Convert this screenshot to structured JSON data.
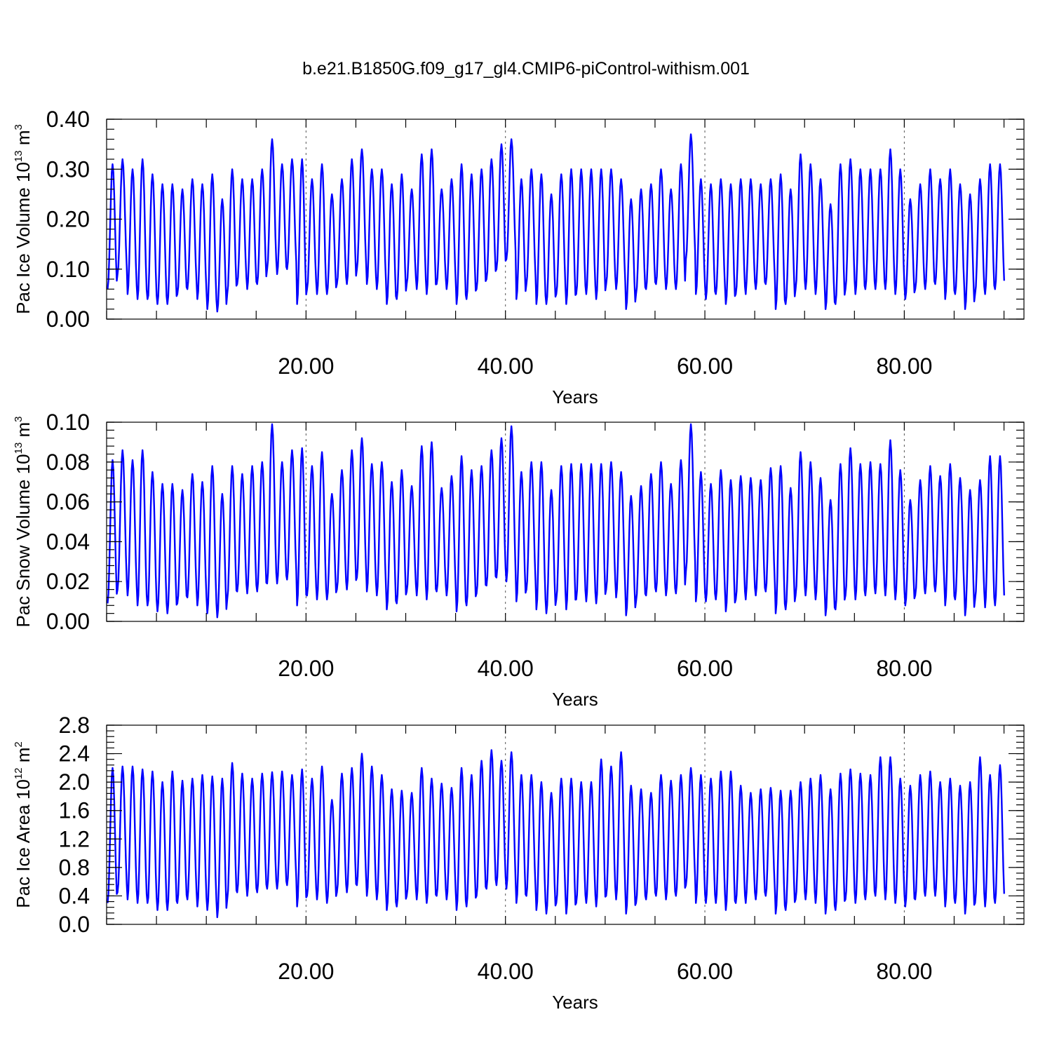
{
  "figure_title": "b.e21.B1850G.f09_g17_gl4.CMIP6-piControl-withism.001",
  "colors": {
    "series": "#0000ff",
    "axes": "#000000",
    "grid": "#555555",
    "background": "#ffffff"
  },
  "chart_data": [
    {
      "type": "line",
      "ylabel_base": "Pac Ice Volume 10",
      "ylabel_exp": "13",
      "ylabel_unit": " m",
      "ylabel_unit_exp": "3",
      "xlabel": "Years",
      "xlim": [
        0,
        92
      ],
      "ylim": [
        0.0,
        0.4
      ],
      "xticks": [
        20,
        40,
        60,
        80
      ],
      "xtick_labels": [
        "20.00",
        "40.00",
        "60.00",
        "80.00"
      ],
      "yticks": [
        0.0,
        0.1,
        0.2,
        0.3,
        0.4
      ],
      "ytick_labels": [
        "0.00",
        "0.10",
        "0.20",
        "0.30",
        "0.40"
      ],
      "grid": "vertical dashed at labeled x ticks",
      "series": [
        {
          "color": "#0000ff",
          "x_start": 0.1,
          "x_end": 90,
          "points_per_year": 12,
          "annual_max": [
            0.31,
            0.32,
            0.3,
            0.32,
            0.29,
            0.27,
            0.27,
            0.26,
            0.28,
            0.27,
            0.29,
            0.24,
            0.3,
            0.28,
            0.28,
            0.3,
            0.36,
            0.31,
            0.32,
            0.32,
            0.28,
            0.31,
            0.25,
            0.28,
            0.32,
            0.34,
            0.3,
            0.3,
            0.27,
            0.29,
            0.26,
            0.33,
            0.34,
            0.26,
            0.28,
            0.31,
            0.29,
            0.3,
            0.32,
            0.35,
            0.36,
            0.28,
            0.3,
            0.29,
            0.25,
            0.29,
            0.3,
            0.3,
            0.3,
            0.3,
            0.3,
            0.28,
            0.24,
            0.26,
            0.27,
            0.3,
            0.26,
            0.31,
            0.37,
            0.28,
            0.27,
            0.28,
            0.27,
            0.28,
            0.28,
            0.27,
            0.28,
            0.29,
            0.26,
            0.33,
            0.31,
            0.28,
            0.23,
            0.31,
            0.32,
            0.3,
            0.3,
            0.3,
            0.34,
            0.3,
            0.24,
            0.27,
            0.3,
            0.28,
            0.3,
            0.27,
            0.25,
            0.28,
            0.31,
            0.31
          ],
          "annual_min": [
            0.06,
            0.09,
            0.05,
            0.04,
            0.03,
            0.03,
            0.03,
            0.05,
            0.06,
            0.04,
            0.02,
            0.015,
            0.05,
            0.07,
            0.06,
            0.07,
            0.1,
            0.09,
            0.1,
            0.03,
            0.06,
            0.05,
            0.05,
            0.07,
            0.07,
            0.1,
            0.07,
            0.06,
            0.03,
            0.04,
            0.07,
            0.06,
            0.05,
            0.07,
            0.06,
            0.03,
            0.04,
            0.06,
            0.08,
            0.1,
            0.12,
            0.04,
            0.07,
            0.03,
            0.03,
            0.05,
            0.03,
            0.05,
            0.05,
            0.04,
            0.07,
            0.06,
            0.02,
            0.05,
            0.06,
            0.07,
            0.06,
            0.06,
            0.12,
            0.05,
            0.04,
            0.05,
            0.03,
            0.05,
            0.06,
            0.06,
            0.07,
            0.02,
            0.03,
            0.06,
            0.06,
            0.05,
            0.02,
            0.03,
            0.06,
            0.05,
            0.06,
            0.06,
            0.06,
            0.05,
            0.04,
            0.06,
            0.06,
            0.07,
            0.04,
            0.05,
            0.02,
            0.05,
            0.05,
            0.06
          ]
        }
      ]
    },
    {
      "type": "line",
      "ylabel_base": "Pac Snow Volume 10",
      "ylabel_exp": "13",
      "ylabel_unit": " m",
      "ylabel_unit_exp": "3",
      "xlabel": "Years",
      "xlim": [
        0,
        92
      ],
      "ylim": [
        0.0,
        0.1
      ],
      "xticks": [
        20,
        40,
        60,
        80
      ],
      "xtick_labels": [
        "20.00",
        "40.00",
        "60.00",
        "80.00"
      ],
      "yticks": [
        0.0,
        0.02,
        0.04,
        0.06,
        0.08,
        0.1
      ],
      "ytick_labels": [
        "0.00",
        "0.02",
        "0.04",
        "0.06",
        "0.08",
        "0.10"
      ],
      "grid": "vertical dashed at labeled x ticks",
      "series": [
        {
          "color": "#0000ff",
          "x_start": 0.1,
          "x_end": 90,
          "points_per_year": 12,
          "annual_max": [
            0.081,
            0.086,
            0.081,
            0.086,
            0.075,
            0.069,
            0.069,
            0.066,
            0.074,
            0.07,
            0.078,
            0.064,
            0.078,
            0.074,
            0.078,
            0.08,
            0.099,
            0.08,
            0.086,
            0.087,
            0.078,
            0.085,
            0.064,
            0.076,
            0.086,
            0.092,
            0.079,
            0.08,
            0.07,
            0.076,
            0.068,
            0.088,
            0.09,
            0.067,
            0.073,
            0.083,
            0.076,
            0.078,
            0.086,
            0.092,
            0.098,
            0.075,
            0.08,
            0.08,
            0.066,
            0.078,
            0.079,
            0.079,
            0.079,
            0.079,
            0.08,
            0.075,
            0.063,
            0.068,
            0.074,
            0.08,
            0.069,
            0.081,
            0.099,
            0.075,
            0.069,
            0.076,
            0.071,
            0.073,
            0.072,
            0.071,
            0.077,
            0.078,
            0.067,
            0.085,
            0.08,
            0.072,
            0.061,
            0.079,
            0.087,
            0.079,
            0.08,
            0.079,
            0.091,
            0.076,
            0.061,
            0.071,
            0.078,
            0.073,
            0.079,
            0.072,
            0.066,
            0.071,
            0.083,
            0.083
          ],
          "annual_min": [
            0.009,
            0.016,
            0.013,
            0.008,
            0.006,
            0.005,
            0.004,
            0.009,
            0.012,
            0.008,
            0.004,
            0.002,
            0.011,
            0.015,
            0.014,
            0.015,
            0.019,
            0.019,
            0.021,
            0.008,
            0.013,
            0.011,
            0.011,
            0.016,
            0.016,
            0.022,
            0.015,
            0.013,
            0.006,
            0.009,
            0.015,
            0.013,
            0.011,
            0.015,
            0.013,
            0.005,
            0.008,
            0.014,
            0.018,
            0.022,
            0.02,
            0.01,
            0.016,
            0.006,
            0.004,
            0.011,
            0.006,
            0.011,
            0.01,
            0.009,
            0.016,
            0.012,
            0.003,
            0.01,
            0.013,
            0.015,
            0.013,
            0.014,
            0.025,
            0.01,
            0.01,
            0.011,
            0.005,
            0.011,
            0.013,
            0.013,
            0.015,
            0.004,
            0.006,
            0.013,
            0.013,
            0.011,
            0.003,
            0.006,
            0.013,
            0.011,
            0.013,
            0.014,
            0.013,
            0.011,
            0.008,
            0.013,
            0.014,
            0.015,
            0.008,
            0.011,
            0.003,
            0.011,
            0.007,
            0.008
          ]
        }
      ]
    },
    {
      "type": "line",
      "ylabel_base": "Pac Ice Area 10",
      "ylabel_exp": "12",
      "ylabel_unit": " m",
      "ylabel_unit_exp": "2",
      "xlabel": "Years",
      "xlim": [
        0,
        92
      ],
      "ylim": [
        0.0,
        2.8
      ],
      "xticks": [
        20,
        40,
        60,
        80
      ],
      "xtick_labels": [
        "20.00",
        "40.00",
        "60.00",
        "80.00"
      ],
      "yticks": [
        0.0,
        0.4,
        0.8,
        1.2,
        1.6,
        2.0,
        2.4,
        2.8
      ],
      "ytick_labels": [
        "0.0",
        "0.4",
        "0.8",
        "1.2",
        "1.6",
        "2.0",
        "2.4",
        "2.8"
      ],
      "grid": "vertical dashed at labeled x ticks",
      "series": [
        {
          "color": "#0000ff",
          "x_start": 0.1,
          "x_end": 90,
          "points_per_year": 12,
          "annual_max": [
            2.2,
            2.22,
            2.22,
            2.18,
            2.15,
            2.0,
            2.15,
            2.02,
            2.05,
            2.1,
            2.08,
            2.05,
            2.27,
            2.12,
            2.05,
            2.12,
            2.14,
            2.15,
            2.1,
            2.18,
            2.05,
            2.22,
            1.75,
            2.12,
            2.2,
            2.4,
            2.22,
            2.1,
            1.9,
            1.88,
            1.85,
            2.2,
            2.05,
            1.98,
            1.92,
            2.2,
            2.1,
            2.3,
            2.45,
            2.3,
            2.42,
            2.1,
            2.1,
            2.0,
            1.85,
            2.05,
            2.05,
            2.0,
            2.0,
            2.32,
            2.22,
            2.42,
            1.95,
            1.9,
            1.85,
            2.1,
            2.02,
            2.1,
            2.2,
            2.1,
            2.05,
            2.15,
            2.15,
            1.95,
            1.85,
            1.9,
            1.92,
            1.88,
            1.88,
            2.0,
            2.05,
            2.1,
            1.9,
            2.12,
            2.18,
            2.12,
            2.1,
            2.35,
            2.35,
            2.05,
            1.95,
            2.1,
            2.15,
            2.0,
            2.05,
            1.95,
            2.0,
            2.35,
            2.1,
            2.24
          ],
          "annual_min": [
            0.3,
            0.45,
            0.35,
            0.3,
            0.25,
            0.2,
            0.2,
            0.3,
            0.35,
            0.25,
            0.2,
            0.1,
            0.35,
            0.45,
            0.4,
            0.45,
            0.5,
            0.5,
            0.55,
            0.25,
            0.4,
            0.35,
            0.3,
            0.45,
            0.45,
            0.55,
            0.4,
            0.35,
            0.2,
            0.25,
            0.4,
            0.35,
            0.3,
            0.4,
            0.35,
            0.2,
            0.25,
            0.4,
            0.5,
            0.55,
            0.5,
            0.3,
            0.4,
            0.2,
            0.15,
            0.3,
            0.15,
            0.3,
            0.3,
            0.25,
            0.4,
            0.35,
            0.15,
            0.3,
            0.35,
            0.4,
            0.35,
            0.4,
            0.55,
            0.3,
            0.3,
            0.3,
            0.2,
            0.3,
            0.35,
            0.35,
            0.4,
            0.15,
            0.2,
            0.35,
            0.35,
            0.3,
            0.15,
            0.2,
            0.35,
            0.3,
            0.35,
            0.4,
            0.35,
            0.3,
            0.25,
            0.35,
            0.4,
            0.4,
            0.25,
            0.3,
            0.15,
            0.3,
            0.25,
            0.3
          ]
        }
      ]
    }
  ]
}
